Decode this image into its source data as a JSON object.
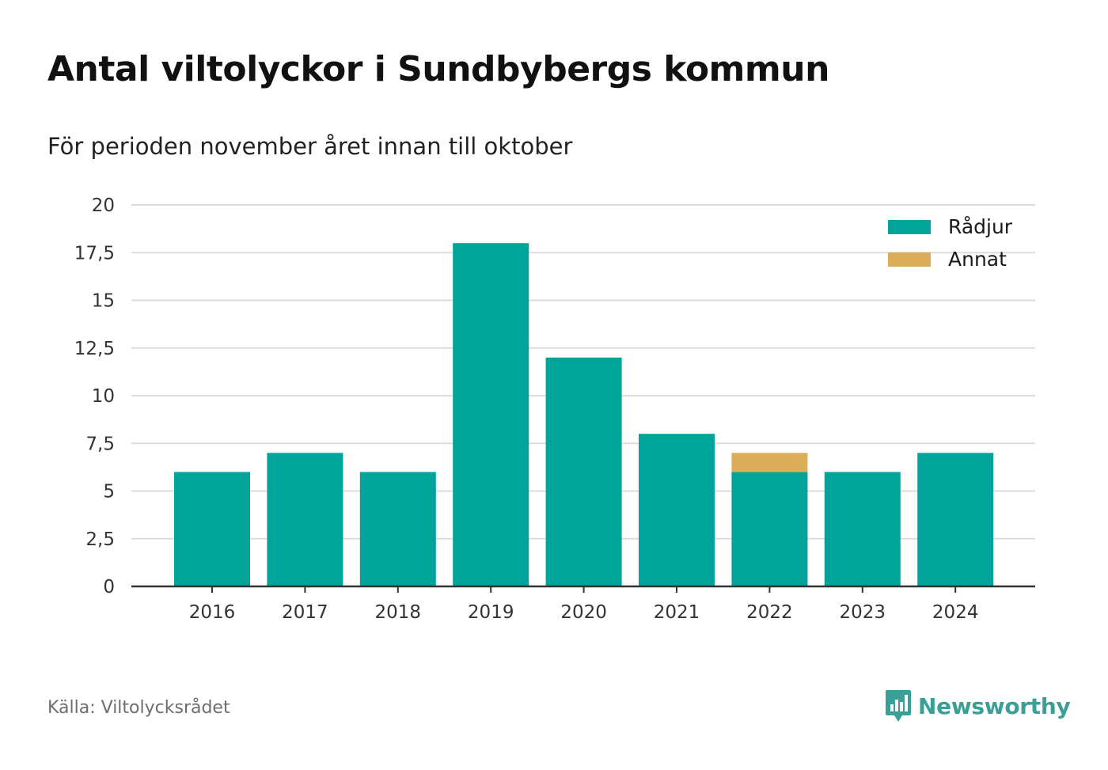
{
  "title": "Antal viltolyckor i Sundbybergs kommun",
  "subtitle": "För perioden november året innan till oktober",
  "source": "Källa: Viltolycksrådet",
  "brand": {
    "name": "Newsworthy",
    "logo_icon": "newsworthy-bar-chart-speech-bubble-icon",
    "color": "#3a9f96"
  },
  "chart_data": {
    "type": "bar",
    "stacked": true,
    "categories": [
      "2016",
      "2017",
      "2018",
      "2019",
      "2020",
      "2021",
      "2022",
      "2023",
      "2024"
    ],
    "series": [
      {
        "name": "Rådjur",
        "color": "#00a499",
        "values": [
          6,
          7,
          6,
          18,
          12,
          8,
          6,
          6,
          7
        ]
      },
      {
        "name": "Annat",
        "color": "#dbad59",
        "values": [
          0,
          0,
          0,
          0,
          0,
          0,
          1,
          0,
          0
        ]
      }
    ],
    "ylim": [
      0,
      20
    ],
    "yticks": [
      0,
      2.5,
      5,
      7.5,
      10,
      12.5,
      15,
      17.5,
      20
    ],
    "ytick_labels": [
      "0",
      "2,5",
      "5",
      "7,5",
      "10",
      "12,5",
      "15",
      "17,5",
      "20"
    ],
    "xlabel": "",
    "ylabel": "",
    "grid": true,
    "legend_position": "top-right"
  }
}
